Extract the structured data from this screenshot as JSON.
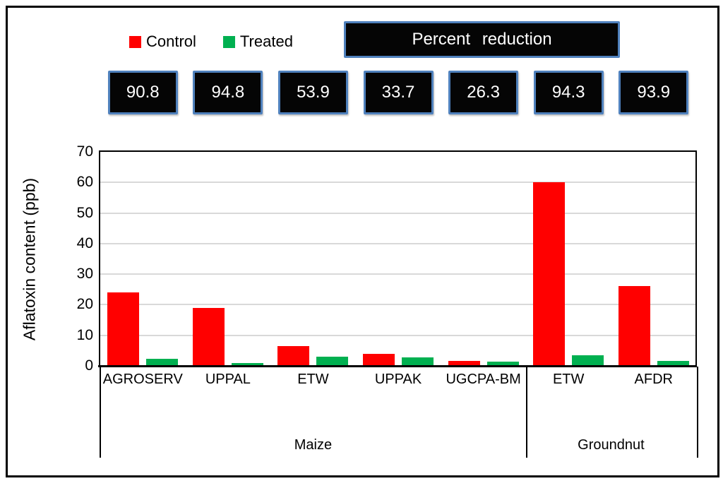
{
  "legend": {
    "control_label": "Control",
    "treated_label": "Treated"
  },
  "percent_reduction": {
    "title": "Percent reduction",
    "values": [
      "90.8",
      "94.8",
      "53.9",
      "33.7",
      "26.3",
      "94.3",
      "93.9"
    ]
  },
  "chart_data": {
    "type": "bar",
    "title": "",
    "xlabel": "",
    "ylabel": "Aflatoxin content (ppb)",
    "ylim": [
      0,
      70
    ],
    "yticks": [
      0,
      10,
      20,
      30,
      40,
      50,
      60,
      70
    ],
    "grid": "horizontal",
    "legend_position": "top-left",
    "categories": [
      "AGROSERV",
      "UPPAL",
      "ETW",
      "UPPAK",
      "UGCPA-BM",
      "ETW",
      "AFDR"
    ],
    "groups": [
      {
        "label": "Maize",
        "span": 5
      },
      {
        "label": "Groundnut",
        "span": 2
      }
    ],
    "series": [
      {
        "name": "Control",
        "color": "#ff0000",
        "values": [
          24,
          19,
          6.4,
          4.0,
          1.7,
          60,
          26
        ]
      },
      {
        "name": "Treated",
        "color": "#00b050",
        "values": [
          2.2,
          1.0,
          2.9,
          2.7,
          1.3,
          3.4,
          1.6
        ]
      }
    ],
    "percent_reduction_by_category": [
      90.8,
      94.8,
      53.9,
      33.7,
      26.3,
      94.3,
      93.9
    ]
  },
  "colors": {
    "control": "#ff0000",
    "treated": "#00b050",
    "box_border": "#4f81bd",
    "box_fill": "#050505",
    "gridline": "#d9d9d9"
  }
}
